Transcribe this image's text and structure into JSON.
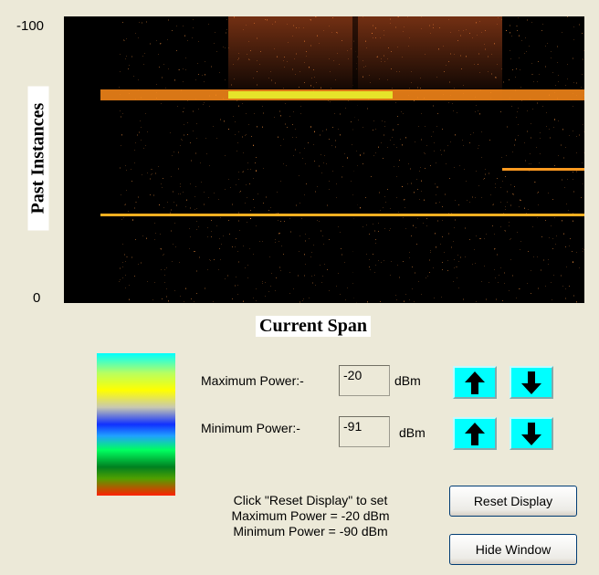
{
  "display": {
    "y_axis": {
      "top": "-100",
      "bottom": "0",
      "label": "Past Instances"
    },
    "x_label": "Current Span"
  },
  "controls": {
    "max": {
      "label": "Maximum Power:-",
      "value": "-20",
      "unit": "dBm"
    },
    "min": {
      "label": "Minimum Power:-",
      "value": "-91",
      "unit": "dBm"
    }
  },
  "note": {
    "lines": [
      "Click \"Reset Display\" to set",
      "Maximum Power = -20 dBm",
      "Minimum Power = -90 dBm"
    ]
  },
  "buttons": {
    "reset": "Reset Display",
    "hide": "Hide Window"
  }
}
